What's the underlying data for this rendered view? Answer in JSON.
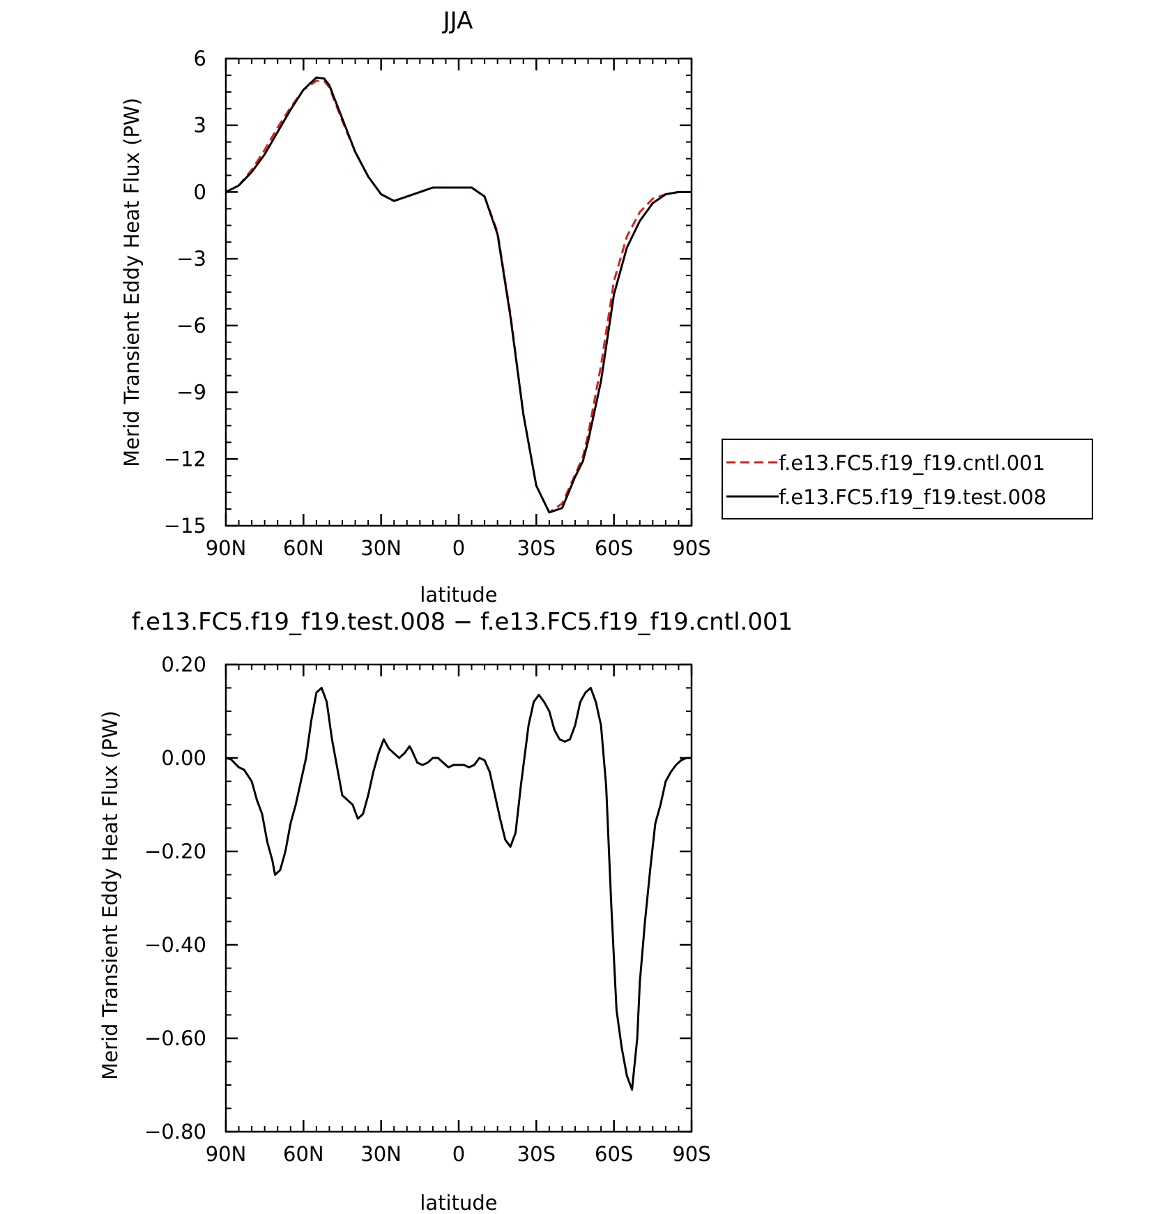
{
  "chart_data": [
    {
      "type": "line",
      "title": "JJA",
      "xlabel": "latitude",
      "ylabel": "Merid Transient Eddy Heat Flux (PW)",
      "xlim": [
        90,
        -90
      ],
      "ylim": [
        -15,
        6
      ],
      "x_ticks": [
        90,
        60,
        30,
        0,
        -30,
        -60,
        -90
      ],
      "x_tick_labels": [
        "90N",
        "60N",
        "30N",
        "0",
        "30S",
        "60S",
        "90S"
      ],
      "y_ticks": [
        6,
        3,
        0,
        -3,
        -6,
        -9,
        -12,
        -15
      ],
      "y_tick_labels": [
        "6",
        "3",
        "0",
        "−3",
        "−6",
        "−9",
        "−12",
        "−15"
      ],
      "grid": false,
      "legend_position": "right",
      "x": [
        90,
        85,
        80,
        75,
        70,
        65,
        60,
        55,
        52,
        50,
        45,
        40,
        35,
        30,
        25,
        20,
        15,
        10,
        5,
        0,
        -5,
        -10,
        -15,
        -20,
        -25,
        -30,
        -35,
        -40,
        -45,
        -48,
        -50,
        -55,
        -60,
        -65,
        -70,
        -75,
        -80,
        -85,
        -90
      ],
      "series": [
        {
          "name": "f.e13.FC5.f19_f19.cntl.001",
          "color": "#e0201b",
          "dash": "dashed",
          "values": [
            0.0,
            0.3,
            1.0,
            1.9,
            2.9,
            3.8,
            4.6,
            5.0,
            5.0,
            4.7,
            3.2,
            1.8,
            0.7,
            -0.1,
            -0.4,
            -0.2,
            0.0,
            0.2,
            0.2,
            0.2,
            0.2,
            -0.2,
            -1.8,
            -5.5,
            -10.0,
            -13.2,
            -14.4,
            -14.0,
            -12.7,
            -11.9,
            -10.9,
            -7.8,
            -4.0,
            -2.0,
            -0.9,
            -0.3,
            -0.1,
            0.0,
            0.0
          ]
        },
        {
          "name": "f.e13.FC5.f19_f19.test.008",
          "color": "#000000",
          "dash": "solid",
          "values": [
            0.0,
            0.3,
            0.9,
            1.7,
            2.7,
            3.7,
            4.6,
            5.15,
            5.1,
            4.8,
            3.3,
            1.8,
            0.7,
            -0.1,
            -0.4,
            -0.2,
            0.0,
            0.2,
            0.2,
            0.2,
            0.2,
            -0.2,
            -1.9,
            -5.6,
            -10.0,
            -13.2,
            -14.4,
            -14.2,
            -12.8,
            -12.1,
            -11.2,
            -8.5,
            -4.6,
            -2.5,
            -1.3,
            -0.5,
            -0.1,
            0.0,
            0.0
          ]
        }
      ]
    },
    {
      "type": "line",
      "title": "f.e13.FC5.f19_f19.test.008 − f.e13.FC5.f19_f19.cntl.001",
      "xlabel": "latitude",
      "ylabel": "Merid Transient Eddy Heat Flux (PW)",
      "xlim": [
        90,
        -90
      ],
      "ylim": [
        -0.8,
        0.2
      ],
      "x_ticks": [
        90,
        60,
        30,
        0,
        -30,
        -60,
        -90
      ],
      "x_tick_labels": [
        "90N",
        "60N",
        "30N",
        "0",
        "30S",
        "60S",
        "90S"
      ],
      "y_ticks": [
        0.2,
        0.0,
        -0.2,
        -0.4,
        -0.6,
        -0.8
      ],
      "y_tick_labels": [
        "0.20",
        "0.00",
        "−0.20",
        "−0.40",
        "−0.60",
        "−0.80"
      ],
      "grid": false,
      "x": [
        90,
        88,
        85,
        83,
        80,
        78,
        76,
        74,
        72,
        71,
        69,
        67,
        65,
        63,
        61,
        59,
        57,
        55,
        53,
        51,
        49,
        47,
        45,
        43,
        41,
        39,
        37,
        35,
        33,
        31,
        29,
        27,
        25,
        23,
        21,
        19,
        18,
        16,
        14,
        12,
        10,
        8,
        6,
        4,
        2,
        0,
        -2,
        -4,
        -6,
        -8,
        -10,
        -12,
        -14,
        -16,
        -18,
        -20,
        -22,
        -24,
        -27,
        -29,
        -31,
        -33,
        -35,
        -37,
        -39,
        -41,
        -43,
        -45,
        -47,
        -49,
        -51,
        -53,
        -55,
        -57,
        -59,
        -61,
        -63,
        -65,
        -67,
        -69,
        -70,
        -72,
        -74,
        -76,
        -78,
        -80,
        -82,
        -84,
        -86,
        -88,
        -90
      ],
      "series": [
        {
          "name": "",
          "color": "#000000",
          "dash": "solid",
          "values": [
            0.0,
            -0.003,
            -0.02,
            -0.025,
            -0.05,
            -0.09,
            -0.12,
            -0.18,
            -0.22,
            -0.25,
            -0.24,
            -0.2,
            -0.14,
            -0.1,
            -0.05,
            0.0,
            0.08,
            0.14,
            0.15,
            0.12,
            0.04,
            -0.02,
            -0.08,
            -0.09,
            -0.1,
            -0.13,
            -0.12,
            -0.08,
            -0.03,
            0.01,
            0.04,
            0.02,
            0.01,
            0.0,
            0.01,
            0.025,
            0.015,
            -0.01,
            -0.015,
            -0.01,
            0.0,
            0.0,
            -0.01,
            -0.02,
            -0.015,
            -0.015,
            -0.015,
            -0.02,
            -0.015,
            0.0,
            -0.005,
            -0.03,
            -0.08,
            -0.13,
            -0.175,
            -0.19,
            -0.16,
            -0.06,
            0.07,
            0.12,
            0.135,
            0.12,
            0.1,
            0.06,
            0.04,
            0.035,
            0.04,
            0.07,
            0.12,
            0.14,
            0.15,
            0.12,
            0.07,
            -0.06,
            -0.32,
            -0.54,
            -0.62,
            -0.68,
            -0.71,
            -0.6,
            -0.48,
            -0.35,
            -0.24,
            -0.14,
            -0.1,
            -0.05,
            -0.03,
            -0.015,
            -0.005,
            0.0,
            0.0
          ]
        }
      ]
    }
  ]
}
